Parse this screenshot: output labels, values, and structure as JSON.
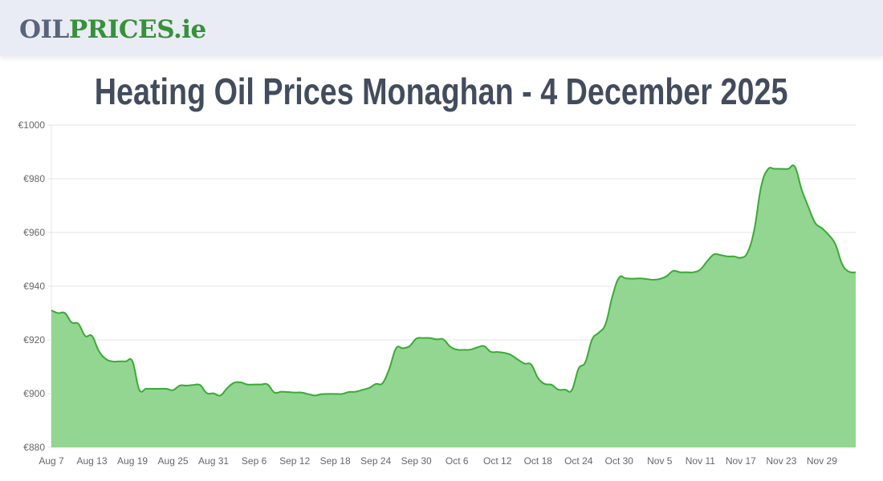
{
  "header": {
    "logo_part1": "OIL",
    "logo_part2": "PRICES.ie"
  },
  "page_title": "Heating Oil Prices Monaghan - 4 December 2025",
  "colors": {
    "line": "#3aaa35",
    "fill": "#92d692",
    "logo_gray": "#59647a",
    "logo_green": "#37913a"
  },
  "chart_data": {
    "type": "area",
    "title": "",
    "xlabel": "",
    "ylabel": "",
    "ylim": [
      880,
      1000
    ],
    "y_ticks": [
      "€880",
      "€900",
      "€920",
      "€940",
      "€960",
      "€980",
      "€1000"
    ],
    "x_tick_labels": [
      "Aug 7",
      "Aug 13",
      "Aug 19",
      "Aug 25",
      "Aug 31",
      "Sep 6",
      "Sep 12",
      "Sep 18",
      "Sep 24",
      "Sep 30",
      "Oct 6",
      "Oct 12",
      "Oct 18",
      "Oct 24",
      "Oct 30",
      "Nov 5",
      "Nov 11",
      "Nov 17",
      "Nov 23",
      "Nov 29"
    ],
    "grid": true,
    "x": [
      "Aug 7",
      "Aug 8",
      "Aug 9",
      "Aug 10",
      "Aug 11",
      "Aug 12",
      "Aug 13",
      "Aug 14",
      "Aug 15",
      "Aug 16",
      "Aug 17",
      "Aug 18",
      "Aug 19",
      "Aug 20",
      "Aug 21",
      "Aug 22",
      "Aug 23",
      "Aug 24",
      "Aug 25",
      "Aug 26",
      "Aug 27",
      "Aug 28",
      "Aug 29",
      "Aug 30",
      "Aug 31",
      "Sep 1",
      "Sep 2",
      "Sep 3",
      "Sep 4",
      "Sep 5",
      "Sep 6",
      "Sep 7",
      "Sep 8",
      "Sep 9",
      "Sep 10",
      "Sep 11",
      "Sep 12",
      "Sep 13",
      "Sep 14",
      "Sep 15",
      "Sep 16",
      "Sep 17",
      "Sep 18",
      "Sep 19",
      "Sep 20",
      "Sep 21",
      "Sep 22",
      "Sep 23",
      "Sep 24",
      "Sep 25",
      "Sep 26",
      "Sep 27",
      "Sep 28",
      "Sep 29",
      "Sep 30",
      "Oct 1",
      "Oct 2",
      "Oct 3",
      "Oct 4",
      "Oct 5",
      "Oct 6",
      "Oct 7",
      "Oct 8",
      "Oct 9",
      "Oct 10",
      "Oct 11",
      "Oct 12",
      "Oct 13",
      "Oct 14",
      "Oct 15",
      "Oct 16",
      "Oct 17",
      "Oct 18",
      "Oct 19",
      "Oct 20",
      "Oct 21",
      "Oct 22",
      "Oct 23",
      "Oct 24",
      "Oct 25",
      "Oct 26",
      "Oct 27",
      "Oct 28",
      "Oct 29",
      "Oct 30",
      "Oct 31",
      "Nov 1",
      "Nov 2",
      "Nov 3",
      "Nov 4",
      "Nov 5",
      "Nov 6",
      "Nov 7",
      "Nov 8",
      "Nov 9",
      "Nov 10",
      "Nov 11",
      "Nov 12",
      "Nov 13",
      "Nov 14",
      "Nov 15",
      "Nov 16",
      "Nov 17",
      "Nov 18",
      "Nov 19",
      "Nov 20",
      "Nov 21",
      "Nov 22",
      "Nov 23",
      "Nov 24",
      "Nov 25",
      "Nov 26",
      "Nov 27",
      "Nov 28",
      "Nov 29",
      "Nov 30",
      "Dec 1",
      "Dec 2",
      "Dec 3",
      "Dec 4"
    ],
    "values": [
      931,
      930,
      930,
      926.5,
      926,
      921.5,
      921.5,
      916,
      913,
      912,
      912,
      912,
      912,
      901.5,
      901.8,
      901.8,
      901.8,
      901.8,
      901.3,
      903,
      903,
      903.2,
      903.2,
      900.2,
      900.1,
      899.3,
      902,
      904,
      904.2,
      903.4,
      903.4,
      903.4,
      903.4,
      900.4,
      900.7,
      900.6,
      900.4,
      900.4,
      899.8,
      899.3,
      899.8,
      899.9,
      899.9,
      899.9,
      900.6,
      900.7,
      901.4,
      902.1,
      903.6,
      903.9,
      909.3,
      916.9,
      916.9,
      917.7,
      920.5,
      920.7,
      920.7,
      920.2,
      920.2,
      917.5,
      916.4,
      916.3,
      916.4,
      917.2,
      917.7,
      915.6,
      915.5,
      915.2,
      914.4,
      912.7,
      911.2,
      910.8,
      905.8,
      903.6,
      903.3,
      901.5,
      901.5,
      901.3,
      909.3,
      911.7,
      920.2,
      922.7,
      926,
      936.2,
      943.2,
      942.9,
      942.8,
      942.9,
      942.7,
      942.4,
      942.7,
      943.7,
      945.7,
      945.2,
      945.2,
      945.2,
      946.2,
      949.2,
      951.8,
      951.6,
      951.1,
      951.1,
      950.6,
      952.6,
      961.1,
      977,
      983.5,
      983.7,
      983.7,
      983.7,
      984.5,
      976,
      969.5,
      963.6,
      961.6,
      959.1,
      955.6,
      948.2,
      945.4,
      945.2
    ]
  }
}
